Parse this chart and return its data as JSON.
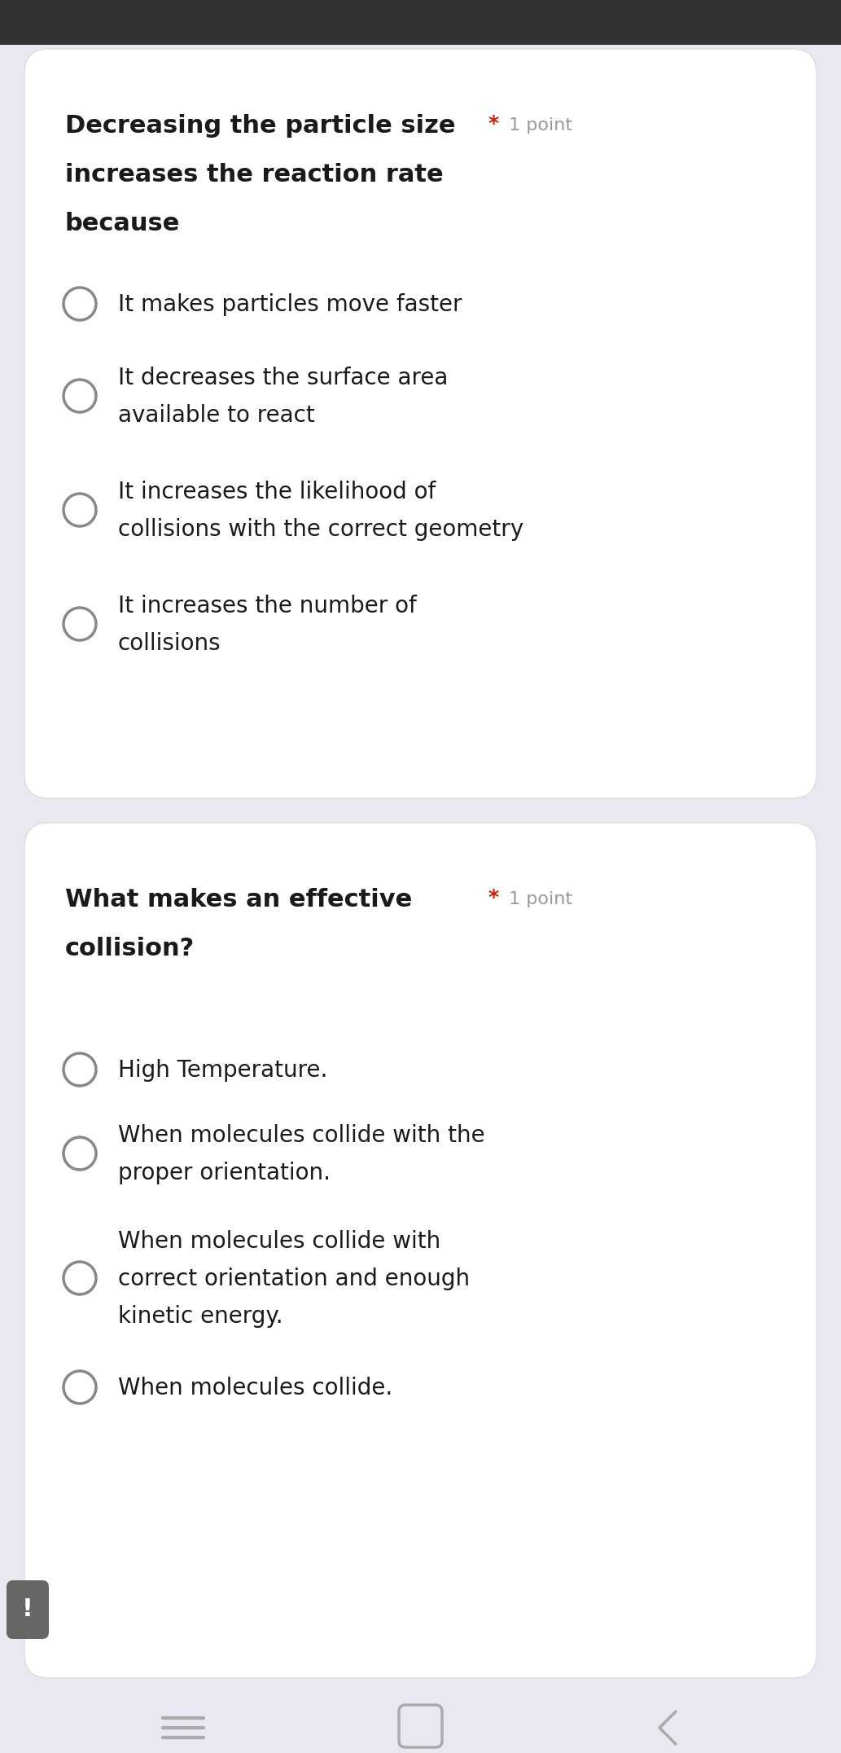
{
  "bg_color": "#e8e8f0",
  "card_color": "#ffffff",
  "card_border_color": "#dddddd",
  "star_color": "#cc2200",
  "point_color": "#999999",
  "circle_color": "#888888",
  "text_color": "#1a1a1a",
  "font_size_question": 22,
  "font_size_option": 20,
  "font_size_point": 16,
  "nav_color": "#aaaaaa",
  "exclaim_bg": "#666666",
  "top_bar_color": "#333333",
  "question1": {
    "text_lines": [
      "Decreasing the particle size",
      "increases the reaction rate",
      "because"
    ],
    "options": [
      "It makes particles move faster",
      "It decreases the surface area\navailable to react",
      "It increases the likelihood of\ncollisions with the correct geometry",
      "It increases the number of\ncollisions"
    ]
  },
  "question2": {
    "text_lines": [
      "What makes an effective",
      "collision?"
    ],
    "options": [
      "High Temperature.",
      "When molecules collide with the\nproper orientation.",
      "When molecules collide with\ncorrect orientation and enough\nkinetic energy.",
      "When molecules collide."
    ]
  }
}
